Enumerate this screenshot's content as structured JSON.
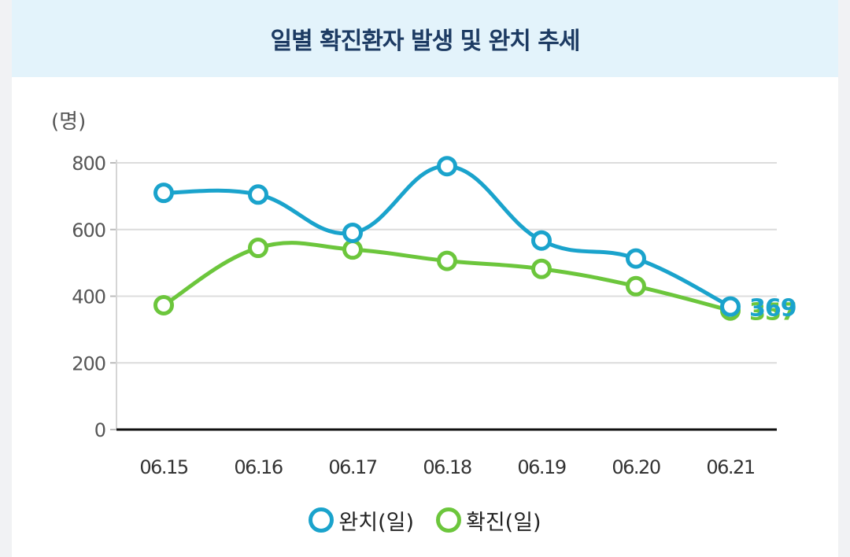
{
  "header": {
    "title": "일별 확진환자 발생 및 완치 추세"
  },
  "chart_data": {
    "type": "line",
    "unit_label": "(명)",
    "categories": [
      "06.15",
      "06.16",
      "06.17",
      "06.18",
      "06.19",
      "06.20",
      "06.21"
    ],
    "series": [
      {
        "name": "완치(일)",
        "color": "#1aa3cc",
        "values": [
          710,
          705,
          590,
          790,
          567,
          513,
          369
        ]
      },
      {
        "name": "확진(일)",
        "color": "#6cc63c",
        "values": [
          373,
          545,
          540,
          506,
          482,
          430,
          357
        ]
      }
    ],
    "end_labels": [
      "369",
      "357"
    ],
    "ylim": [
      0,
      800
    ],
    "yticks": [
      "0",
      "200",
      "400",
      "600",
      "800"
    ],
    "grid": true,
    "legend_position": "bottom"
  },
  "legend": {
    "items": [
      {
        "label": "완치(일)",
        "color": "#1aa3cc"
      },
      {
        "label": "확진(일)",
        "color": "#6cc63c"
      }
    ]
  }
}
